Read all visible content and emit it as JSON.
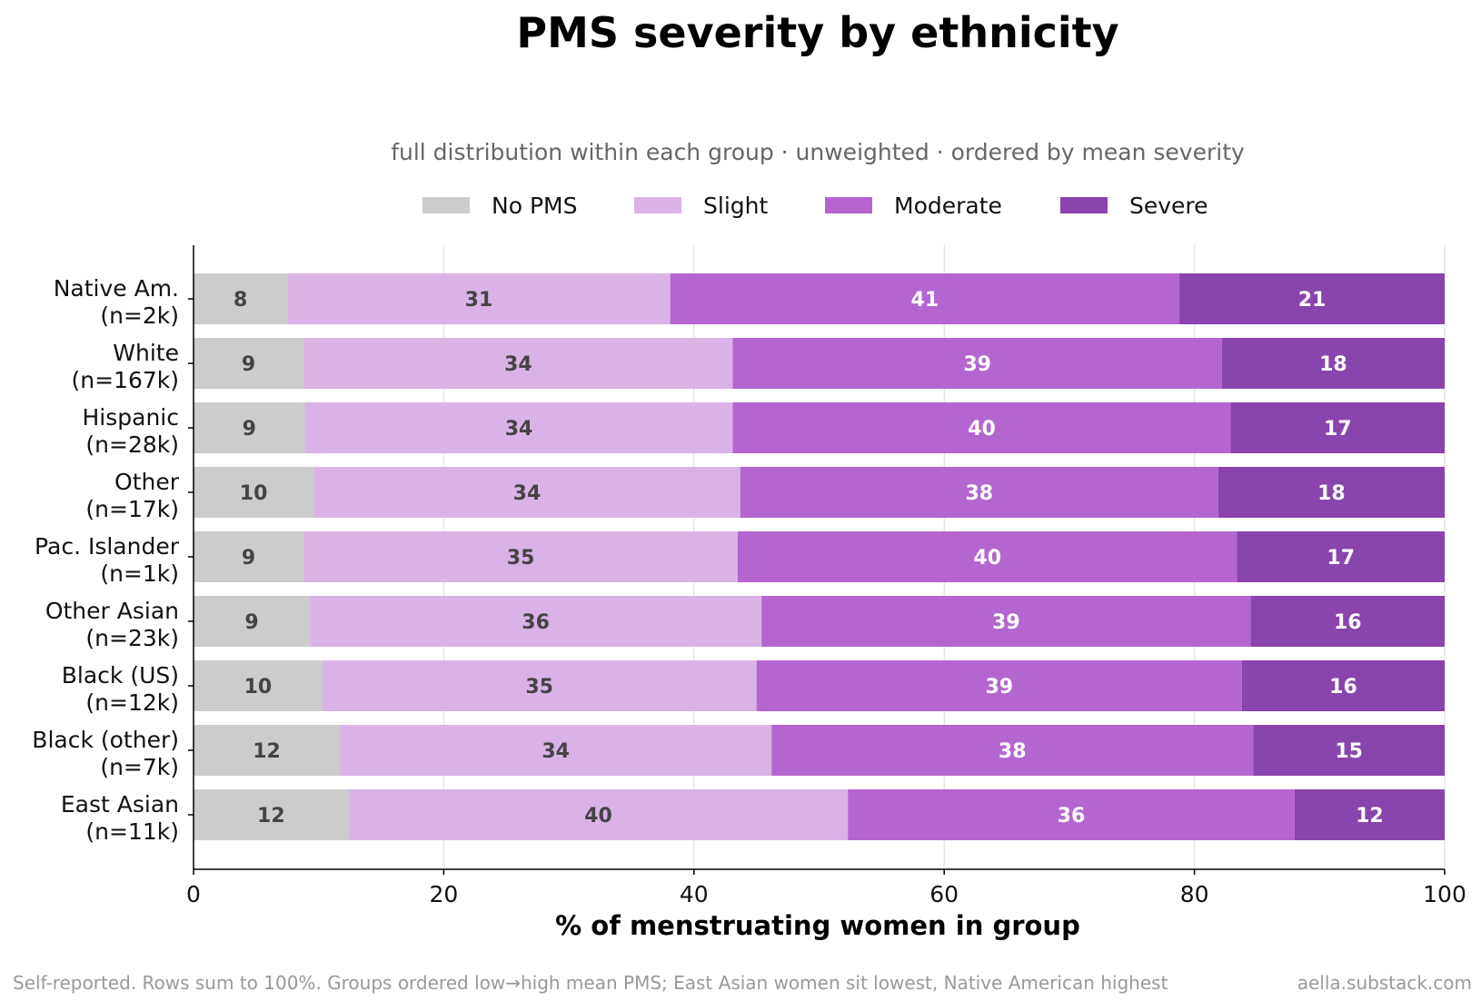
{
  "chart_data": {
    "type": "bar",
    "orientation": "horizontal",
    "stacked": true,
    "title": "PMS severity by ethnicity",
    "subtitle": "full distribution within each group · unweighted · ordered by mean severity",
    "xlabel": "% of menstruating women in group",
    "ylabel": "",
    "xlim": [
      0,
      100
    ],
    "x_ticks": [
      "0",
      "20",
      "40",
      "60",
      "80",
      "100"
    ],
    "grid": "vertical",
    "legend_position": "top",
    "categories": [
      [
        "Native Am.",
        "(n=2k)"
      ],
      [
        "White",
        "(n=167k)"
      ],
      [
        "Hispanic",
        "(n=28k)"
      ],
      [
        "Other",
        "(n=17k)"
      ],
      [
        "Pac. Islander",
        "(n=1k)"
      ],
      [
        "Other Asian",
        "(n=23k)"
      ],
      [
        "Black (US)",
        "(n=12k)"
      ],
      [
        "Black (other)",
        "(n=7k)"
      ],
      [
        "East Asian",
        "(n=11k)"
      ]
    ],
    "series": [
      {
        "name": "No PMS",
        "color": "#cccccc",
        "label_color": "#444444",
        "values": [
          7.5,
          8.8,
          8.9,
          9.6,
          8.8,
          9.3,
          10.3,
          11.7,
          12.4
        ],
        "labels": [
          "8",
          "9",
          "9",
          "10",
          "9",
          "9",
          "10",
          "12",
          "12"
        ]
      },
      {
        "name": "Slight",
        "color": "#d9b3e6",
        "label_color": "#444444",
        "values": [
          30.6,
          34.3,
          34.2,
          34.1,
          34.7,
          36.1,
          34.7,
          34.5,
          39.9
        ],
        "labels": [
          "31",
          "34",
          "34",
          "34",
          "35",
          "36",
          "35",
          "34",
          "40"
        ]
      },
      {
        "name": "Moderate",
        "color": "#b565d0",
        "label_color": "#ffffff",
        "values": [
          40.7,
          39.1,
          39.8,
          38.2,
          39.9,
          39.1,
          38.8,
          38.5,
          35.7
        ],
        "labels": [
          "41",
          "39",
          "40",
          "38",
          "40",
          "39",
          "39",
          "38",
          "36"
        ]
      },
      {
        "name": "Severe",
        "color": "#8a44ad",
        "label_color": "#ffffff",
        "values": [
          21.2,
          17.8,
          17.1,
          18.1,
          16.6,
          15.5,
          16.2,
          15.3,
          12.0
        ],
        "labels": [
          "21",
          "18",
          "17",
          "18",
          "17",
          "16",
          "16",
          "15",
          "12"
        ]
      }
    ]
  },
  "footer": {
    "note": "Self-reported. Rows sum to 100%. Groups ordered low→high mean PMS; East Asian women sit lowest, Native American highest",
    "source": "aella.substack.com"
  }
}
